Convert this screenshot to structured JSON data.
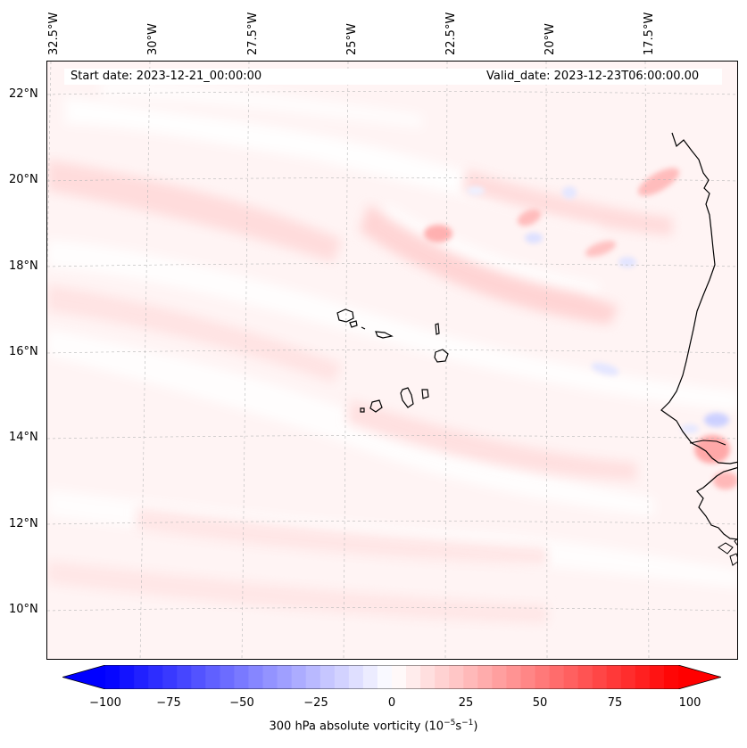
{
  "header": {
    "start_date": "Start date: 2023-12-21_00:00:00",
    "valid_date": "Valid_date: 2023-12-23T06:00:00.00"
  },
  "map": {
    "projection": "lambert-conformal",
    "extent": {
      "lon_min": -33,
      "lon_max": -15.3,
      "lat_min": 8.9,
      "lat_max": 22.8
    },
    "gridlines": true,
    "land_fill": "none",
    "features": [
      "Cape Verde islands",
      "West African coastline (Mauritania, Senegal, Gambia, Guinea-Bissau)"
    ],
    "longitude_labels": [
      "32.5°W",
      "30°W",
      "27.5°W",
      "25°W",
      "22.5°W",
      "20°W",
      "17.5°W"
    ],
    "latitude_labels": [
      "22°N",
      "20°N",
      "18°N",
      "16°N",
      "14°N",
      "12°N",
      "10°N"
    ]
  },
  "field": {
    "variable": "300 hPa absolute vorticity",
    "colormap": "bwr",
    "dominant_range": [
      0,
      25
    ],
    "local_maxima_near": [
      "19°N 23°W",
      "13.5°N 15.5°W"
    ],
    "local_minima_near": [
      "14.3°N 16°W",
      "18.8°N 20°W"
    ]
  },
  "colorbar": {
    "orientation": "horizontal",
    "extend": "both",
    "vmin": -100,
    "vmax": 100,
    "levels": 40,
    "ticks": [
      "−100",
      "−75",
      "−50",
      "−25",
      "0",
      "25",
      "50",
      "75",
      "100"
    ],
    "label_prefix": "300 hPa absolute vorticity (10",
    "label_exp1": "−5",
    "label_mid": "s",
    "label_exp2": "−1",
    "label_suffix": ")",
    "colors": {
      "low": "#0000ff",
      "mid": "#ffffff",
      "high": "#ff0000"
    }
  }
}
